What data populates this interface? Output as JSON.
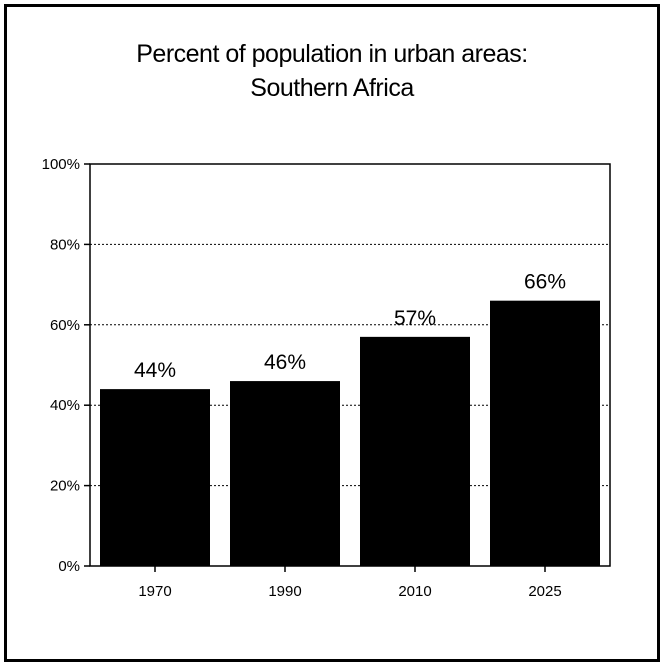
{
  "chart_data": {
    "type": "bar",
    "title_line1": "Percent of population in urban areas:",
    "title_line2": "Southern Africa",
    "categories": [
      "1970",
      "1990",
      "2010",
      "2025"
    ],
    "values": [
      44,
      46,
      57,
      66
    ],
    "value_labels": [
      "44%",
      "46%",
      "57%",
      "66%"
    ],
    "ylim": [
      0,
      100
    ],
    "yticks": [
      0,
      20,
      40,
      60,
      80,
      100
    ],
    "ytick_labels": [
      "0%",
      "20%",
      "40%",
      "60%",
      "80%",
      "100%"
    ],
    "xlabel": "",
    "ylabel": "",
    "grid": true,
    "legend": "none",
    "bar_color": "#000000"
  }
}
